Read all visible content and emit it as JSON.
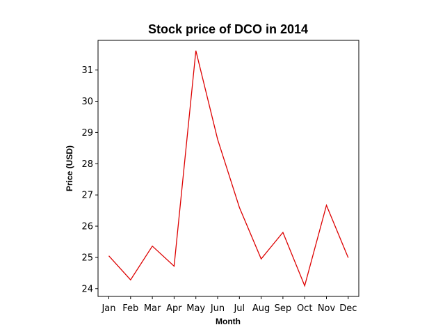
{
  "chart_data": {
    "type": "line",
    "title": "Stock price of DCO in 2014",
    "xlabel": "Month",
    "ylabel": "Price (USD)",
    "categories": [
      "Jan",
      "Feb",
      "Mar",
      "Apr",
      "May",
      "Jun",
      "Jul",
      "Aug",
      "Sep",
      "Oct",
      "Nov",
      "Dec"
    ],
    "series": [
      {
        "values": [
          25.05,
          24.28,
          25.36,
          24.72,
          31.62,
          28.78,
          26.6,
          24.95,
          25.8,
          24.09,
          26.67,
          24.99
        ],
        "color": "#dd0000"
      }
    ],
    "yticks": [
      24,
      25,
      26,
      27,
      28,
      29,
      30,
      31
    ],
    "ylim": [
      23.75,
      31.95
    ],
    "grid": false,
    "legend": false
  }
}
